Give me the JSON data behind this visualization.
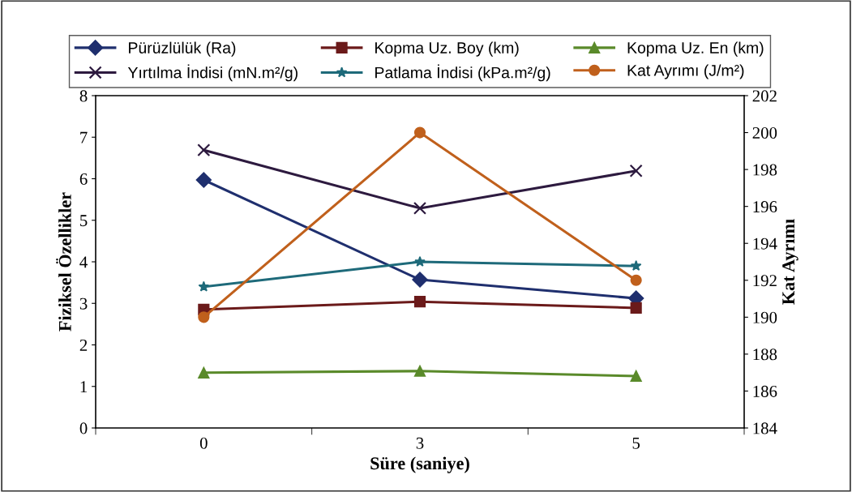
{
  "chart_data": {
    "type": "line",
    "xlabel": "Süre (saniye)",
    "ylabel": "Fiziksel Özellikler",
    "y2label": "Kat Ayrımı",
    "categories": [
      "0",
      "3",
      "5"
    ],
    "series": [
      {
        "name": "Pürüzlülük (Ra)",
        "color": "#1f2f6e",
        "marker": "diamond",
        "values": [
          5.97,
          3.57,
          3.12
        ]
      },
      {
        "name": "Kopma Uz. Boy (km)",
        "color": "#6b1a1a",
        "marker": "square",
        "values": [
          2.85,
          3.04,
          2.89
        ]
      },
      {
        "name": "Kopma Uz. En (km)",
        "color": "#5a8a2a",
        "marker": "triangle",
        "values": [
          1.33,
          1.37,
          1.25
        ]
      },
      {
        "name": "Yırtılma İndisi (mN.m²/g)",
        "color": "#2d1a3f",
        "marker": "cross",
        "values": [
          6.69,
          5.29,
          6.19
        ]
      },
      {
        "name": "Patlama İndisi (kPa.m²/g)",
        "color": "#1e6a7a",
        "marker": "star",
        "values": [
          3.4,
          4.0,
          3.9
        ]
      },
      {
        "name": "Kat Ayrımı (J/m²)",
        "color": "#c0601c",
        "marker": "circle",
        "axis": "y2",
        "values": [
          190,
          200,
          192
        ]
      }
    ],
    "ylim": [
      0,
      8
    ],
    "yticks": [
      0,
      1,
      2,
      3,
      4,
      5,
      6,
      7,
      8
    ],
    "y2lim": [
      184,
      202
    ],
    "y2ticks": [
      184,
      186,
      188,
      190,
      192,
      194,
      196,
      198,
      200,
      202
    ],
    "legend": "top",
    "grid": false,
    "line_style": "solid"
  }
}
